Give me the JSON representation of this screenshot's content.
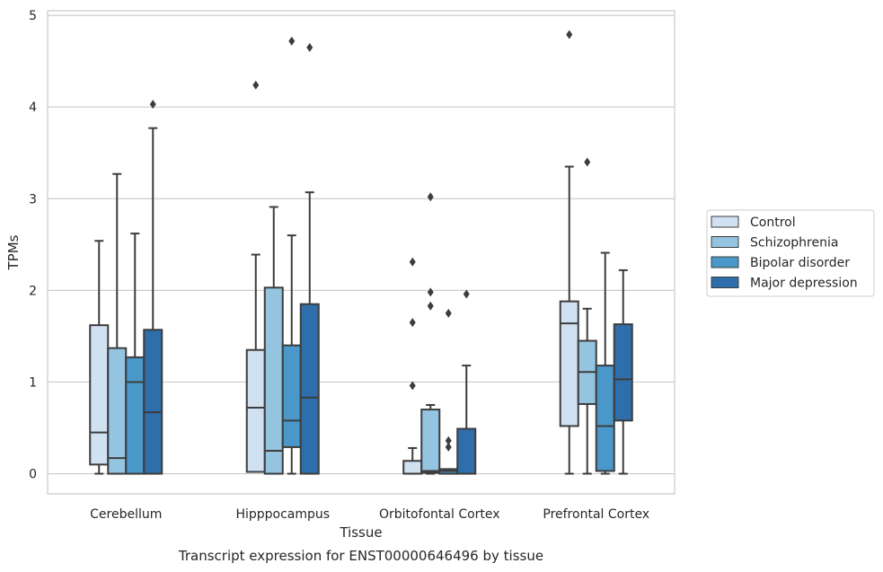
{
  "chart_data": {
    "type": "box",
    "caption": "Transcript expression for ENST00000646496 by tissue",
    "xlabel": "Tissue",
    "ylabel": "TPMs",
    "ylim": [
      -0.22,
      5.05
    ],
    "yticks": [
      0,
      1,
      2,
      3,
      4,
      5
    ],
    "grid": true,
    "legend_placement": "right",
    "categories": [
      "Cerebellum",
      "Hipppocampus",
      "Orbitofontal Cortex",
      "Prefrontal Cortex"
    ],
    "series": [
      {
        "name": "Control",
        "color": "#d0e1f2",
        "boxes": [
          {
            "min": 0.0,
            "q1": 0.1,
            "median": 0.45,
            "q3": 1.62,
            "max": 2.54,
            "outliers": []
          },
          {
            "min": 0.02,
            "q1": 0.02,
            "median": 0.72,
            "q3": 1.35,
            "max": 2.39,
            "outliers": [
              4.24
            ]
          },
          {
            "min": 0.0,
            "q1": 0.0,
            "median": 0.0,
            "q3": 0.14,
            "max": 0.28,
            "outliers": [
              0.96,
              1.65,
              2.31
            ]
          },
          {
            "min": 0.0,
            "q1": 0.52,
            "median": 1.64,
            "q3": 1.88,
            "max": 3.35,
            "outliers": [
              4.79
            ]
          }
        ]
      },
      {
        "name": "Schizophrenia",
        "color": "#94c4df",
        "boxes": [
          {
            "min": 0.0,
            "q1": 0.0,
            "median": 0.17,
            "q3": 1.37,
            "max": 3.27,
            "outliers": []
          },
          {
            "min": 0.0,
            "q1": 0.0,
            "median": 0.25,
            "q3": 2.03,
            "max": 2.91,
            "outliers": []
          },
          {
            "min": 0.0,
            "q1": 0.01,
            "median": 0.03,
            "q3": 0.7,
            "max": 0.75,
            "outliers": [
              1.83,
              1.98,
              3.02
            ]
          },
          {
            "min": 0.0,
            "q1": 0.76,
            "median": 1.11,
            "q3": 1.45,
            "max": 1.8,
            "outliers": [
              3.4
            ]
          }
        ]
      },
      {
        "name": "Bipolar disorder",
        "color": "#4a98c9",
        "boxes": [
          {
            "min": 0.0,
            "q1": 0.0,
            "median": 1.0,
            "q3": 1.27,
            "max": 2.62,
            "outliers": []
          },
          {
            "min": 0.0,
            "q1": 0.29,
            "median": 0.58,
            "q3": 1.4,
            "max": 2.6,
            "outliers": [
              4.72
            ]
          },
          {
            "min": 0.0,
            "q1": 0.0,
            "median": 0.03,
            "q3": 0.05,
            "max": 0.05,
            "outliers": [
              0.29,
              0.36,
              1.75
            ]
          },
          {
            "min": 0.0,
            "q1": 0.03,
            "median": 0.52,
            "q3": 1.18,
            "max": 2.41,
            "outliers": []
          }
        ]
      },
      {
        "name": "Major depression",
        "color": "#2e6eab",
        "boxes": [
          {
            "min": 0.0,
            "q1": 0.0,
            "median": 0.67,
            "q3": 1.57,
            "max": 3.77,
            "outliers": [
              4.03
            ]
          },
          {
            "min": 0.0,
            "q1": 0.0,
            "median": 0.83,
            "q3": 1.85,
            "max": 3.07,
            "outliers": [
              4.65
            ]
          },
          {
            "min": 0.0,
            "q1": 0.0,
            "median": 0.0,
            "q3": 0.49,
            "max": 1.18,
            "outliers": [
              1.96
            ]
          },
          {
            "min": 0.0,
            "q1": 0.58,
            "median": 1.03,
            "q3": 1.63,
            "max": 2.22,
            "outliers": []
          }
        ]
      }
    ]
  }
}
